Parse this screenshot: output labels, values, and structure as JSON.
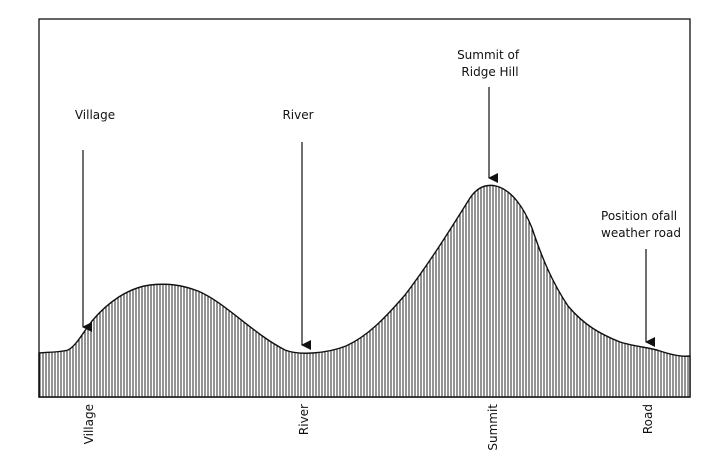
{
  "diagram": {
    "top_labels": {
      "village": [
        "Village"
      ],
      "river": [
        "River"
      ],
      "summit": [
        "Summit of",
        "Ridge Hill"
      ],
      "road": [
        "Position ofall",
        "weather road"
      ]
    },
    "axis_labels": {
      "village": "Village",
      "river": "River",
      "summit": "Summit",
      "road": "Road"
    }
  }
}
